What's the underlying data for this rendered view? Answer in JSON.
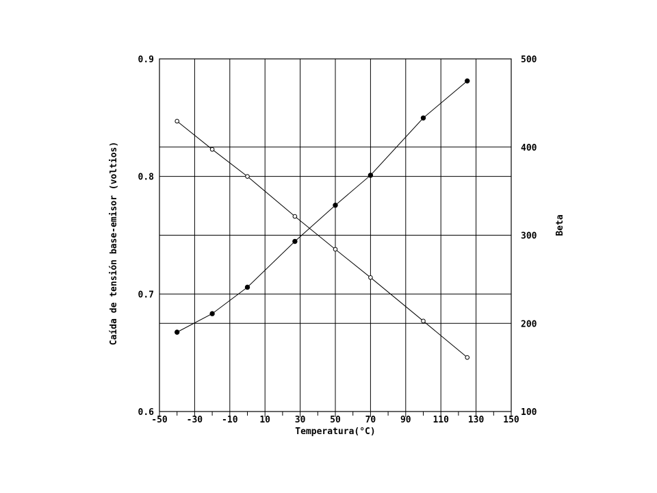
{
  "chart_data": {
    "type": "line",
    "title": "",
    "xlabel": "Temperatura(°C)",
    "ylabel": "Caída de tensión base-emisor (voltios)",
    "y2label": "Beta",
    "xlim": [
      -50,
      150
    ],
    "ylim": [
      0.6,
      0.9
    ],
    "y2lim": [
      100,
      500
    ],
    "x_ticks": [
      -50,
      -30,
      -10,
      10,
      30,
      50,
      70,
      90,
      110,
      130,
      150
    ],
    "x_tick_labels": [
      "-50",
      "-30",
      "-10",
      "10",
      "30",
      "50",
      "70",
      "90",
      "110",
      "130",
      "150"
    ],
    "y_ticks": [
      0.6,
      0.7,
      0.8,
      0.9
    ],
    "y_tick_labels": [
      "0.6",
      "0.7",
      "0.8",
      "0.9"
    ],
    "y2_ticks": [
      100,
      200,
      300,
      400,
      500
    ],
    "y2_tick_labels": [
      "100",
      "200",
      "300",
      "400",
      "500"
    ],
    "grid": true,
    "series": [
      {
        "axis": "left",
        "marker": "open-circle",
        "x": [
          -40,
          -20,
          0,
          27,
          50,
          70,
          100,
          125
        ],
        "y": [
          0.847,
          0.823,
          0.8,
          0.766,
          0.738,
          0.714,
          0.677,
          0.646
        ]
      },
      {
        "axis": "right",
        "marker": "filled-circle",
        "x": [
          -40,
          -20,
          0,
          27,
          50,
          70,
          100,
          125
        ],
        "y": [
          190,
          211,
          241,
          293,
          334,
          368,
          433,
          475
        ]
      }
    ]
  }
}
